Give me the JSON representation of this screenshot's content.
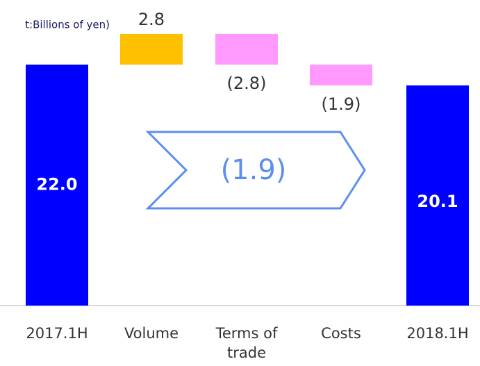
{
  "chart_data": {
    "type": "waterfall",
    "unit_label": "t:Billions of yen)",
    "categories": [
      "2017.1H",
      "Volume",
      "Terms of trade",
      "Costs",
      "2018.1H"
    ],
    "values": [
      22.0,
      2.8,
      -2.8,
      -1.9,
      20.1
    ],
    "value_labels": [
      "22.0",
      "2.8",
      "(2.8)",
      "(1.9)",
      "20.1"
    ],
    "colors": {
      "total": "#0000ff",
      "increase": "#ffc000",
      "decrease": "#ff99ff"
    },
    "annotation": "(1.9)",
    "ylim": [
      0,
      27.9
    ]
  }
}
